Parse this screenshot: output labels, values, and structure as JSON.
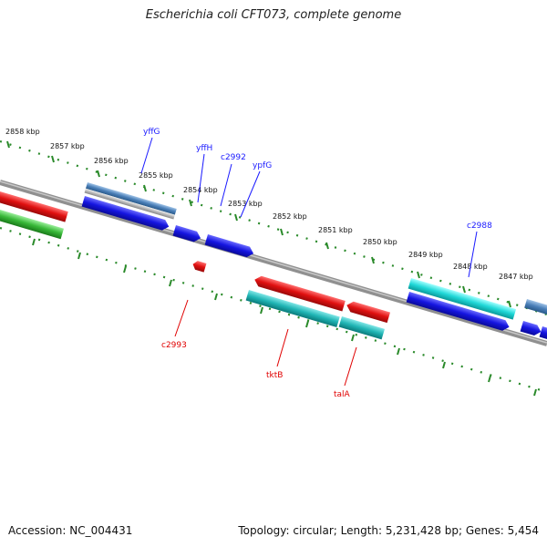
{
  "title": "Escherichia coli CFT073, complete genome",
  "accession": "Accession: NC_004431",
  "topology": "Topology: circular; Length: 5,231,428 bp; Genes: 5,454",
  "ticks": [
    "2858 kbp",
    "2857 kbp",
    "2856 kbp",
    "2855 kbp",
    "2854 kbp",
    "2853 kbp",
    "2852 kbp",
    "2851 kbp",
    "2850 kbp",
    "2849 kbp",
    "2848 kbp",
    "2847 kbp"
  ],
  "genes_forward": [
    "yffG",
    "yffH",
    "c2992",
    "ypfG",
    "c2988"
  ],
  "genes_reverse": [
    "c2993",
    "tktB",
    "talA"
  ],
  "colors": {
    "forward_label": "#1a1aff",
    "reverse_label": "#e00000",
    "backbone": "#808080",
    "tick": "#2a8a2a",
    "blue": "#1515e0",
    "red": "#e01010",
    "cyan": "#20d0d0",
    "teal": "#20b5b5",
    "green": "#38b838",
    "steel": "#4a7fb8",
    "grey": "#b8b8b8"
  }
}
